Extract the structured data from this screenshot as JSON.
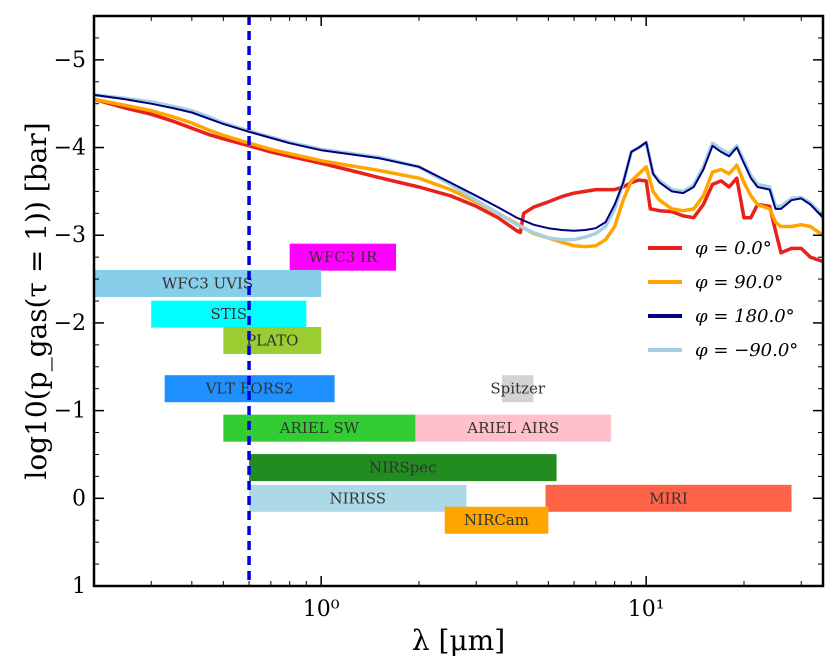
{
  "chart_data": {
    "type": "line",
    "title": "",
    "xlabel": "λ [μm]",
    "ylabel": "log10(p_gas(τ = 1)) [bar]",
    "xscale": "log",
    "xlim": [
      0.2,
      35
    ],
    "ylim": [
      1,
      -5.5
    ],
    "y_inverted": true,
    "x_ticks": [
      {
        "value": 1,
        "label": "10⁰"
      },
      {
        "value": 10,
        "label": "10¹"
      }
    ],
    "y_ticks": [
      {
        "value": -5,
        "label": "−5"
      },
      {
        "value": -4,
        "label": "−4"
      },
      {
        "value": -3,
        "label": "−3"
      },
      {
        "value": -2,
        "label": "−2"
      },
      {
        "value": -1,
        "label": "−1"
      },
      {
        "value": 0,
        "label": "0"
      },
      {
        "value": 1,
        "label": "1"
      }
    ],
    "vline": {
      "x": 0.6,
      "color": "#0000dd",
      "style": "dashed"
    },
    "legend_position": "right",
    "series": [
      {
        "name": "φ = 0.0°",
        "color": "#e8221b",
        "x": [
          0.2,
          0.25,
          0.3,
          0.35,
          0.4,
          0.45,
          0.5,
          0.6,
          0.7,
          0.8,
          1.0,
          1.2,
          1.5,
          2.0,
          2.5,
          3.0,
          3.5,
          4.0,
          4.1,
          4.2,
          4.5,
          5.0,
          5.5,
          6.0,
          7.0,
          8.0,
          8.5,
          9.0,
          9.5,
          10.0,
          10.3,
          11.0,
          12.0,
          13.0,
          14.0,
          15.0,
          16.0,
          17.0,
          18.0,
          19.0,
          20.0,
          21.0,
          22.0,
          24.0,
          25.0,
          26.0,
          28.0,
          30.0,
          32.0,
          35.0
        ],
        "y": [
          -4.55,
          -4.45,
          -4.38,
          -4.3,
          -4.22,
          -4.15,
          -4.1,
          -4.02,
          -3.95,
          -3.9,
          -3.82,
          -3.75,
          -3.66,
          -3.55,
          -3.45,
          -3.33,
          -3.2,
          -3.05,
          -3.03,
          -3.25,
          -3.32,
          -3.38,
          -3.44,
          -3.48,
          -3.52,
          -3.52,
          -3.55,
          -3.6,
          -3.63,
          -3.62,
          -3.3,
          -3.28,
          -3.27,
          -3.22,
          -3.2,
          -3.35,
          -3.58,
          -3.62,
          -3.55,
          -3.65,
          -3.2,
          -3.2,
          -3.35,
          -3.33,
          -3.05,
          -2.8,
          -2.85,
          -2.85,
          -2.75,
          -2.7
        ]
      },
      {
        "name": "φ = 90.0°",
        "color": "#ffa500",
        "x": [
          0.2,
          0.25,
          0.3,
          0.35,
          0.4,
          0.45,
          0.5,
          0.6,
          0.7,
          0.8,
          1.0,
          1.2,
          1.5,
          2.0,
          2.5,
          3.0,
          3.5,
          4.0,
          4.5,
          5.0,
          5.5,
          6.0,
          6.5,
          7.0,
          7.5,
          8.0,
          8.5,
          9.0,
          9.5,
          10.0,
          10.5,
          11.0,
          12.0,
          13.0,
          14.0,
          15.0,
          16.0,
          17.0,
          18.0,
          19.0,
          20.0,
          21.0,
          22.0,
          24.0,
          25.0,
          26.0,
          28.0,
          30.0,
          32.0,
          35.0
        ],
        "y": [
          -4.55,
          -4.48,
          -4.42,
          -4.35,
          -4.28,
          -4.2,
          -4.14,
          -4.05,
          -3.98,
          -3.93,
          -3.85,
          -3.8,
          -3.74,
          -3.65,
          -3.52,
          -3.38,
          -3.25,
          -3.13,
          -3.02,
          -2.97,
          -2.92,
          -2.88,
          -2.87,
          -2.88,
          -2.95,
          -3.1,
          -3.4,
          -3.62,
          -3.7,
          -3.78,
          -3.5,
          -3.4,
          -3.3,
          -3.28,
          -3.3,
          -3.45,
          -3.72,
          -3.75,
          -3.7,
          -3.8,
          -3.6,
          -3.45,
          -3.35,
          -3.3,
          -3.15,
          -3.1,
          -3.1,
          -3.12,
          -3.1,
          -3.0
        ]
      },
      {
        "name": "φ = 180.0°",
        "color": "#000080",
        "x": [
          0.2,
          0.25,
          0.3,
          0.35,
          0.4,
          0.45,
          0.5,
          0.6,
          0.7,
          0.8,
          1.0,
          1.2,
          1.5,
          2.0,
          2.5,
          3.0,
          3.5,
          4.0,
          4.5,
          5.0,
          5.5,
          6.0,
          6.5,
          7.0,
          7.5,
          8.0,
          8.5,
          9.0,
          9.5,
          10.0,
          10.5,
          11.0,
          12.0,
          13.0,
          14.0,
          15.0,
          16.0,
          17.0,
          18.0,
          19.0,
          20.0,
          21.0,
          22.0,
          24.0,
          25.0,
          26.0,
          28.0,
          30.0,
          32.0,
          35.0
        ],
        "y": [
          -4.6,
          -4.55,
          -4.5,
          -4.45,
          -4.4,
          -4.33,
          -4.27,
          -4.18,
          -4.11,
          -4.05,
          -3.97,
          -3.93,
          -3.88,
          -3.78,
          -3.6,
          -3.45,
          -3.32,
          -3.2,
          -3.12,
          -3.08,
          -3.06,
          -3.05,
          -3.06,
          -3.08,
          -3.15,
          -3.35,
          -3.6,
          -3.95,
          -4.0,
          -4.06,
          -3.7,
          -3.6,
          -3.5,
          -3.48,
          -3.55,
          -3.75,
          -4.02,
          -3.95,
          -3.9,
          -4.0,
          -3.82,
          -3.65,
          -3.55,
          -3.52,
          -3.3,
          -3.3,
          -3.4,
          -3.42,
          -3.35,
          -3.2
        ]
      },
      {
        "name": "φ = −90.0°",
        "color": "#a6cfe2",
        "x": [
          0.2,
          0.25,
          0.3,
          0.35,
          0.4,
          0.45,
          0.5,
          0.6,
          0.7,
          0.8,
          1.0,
          1.2,
          1.5,
          2.0,
          2.5,
          3.0,
          3.5,
          4.0,
          4.5,
          5.0,
          5.5,
          6.0,
          6.5,
          7.0,
          7.5,
          8.0,
          8.5,
          9.0,
          9.5,
          10.0,
          10.5,
          11.0,
          12.0,
          13.0,
          14.0,
          15.0,
          16.0,
          17.0,
          18.0,
          19.0,
          20.0,
          21.0,
          22.0,
          24.0,
          25.0,
          26.0,
          28.0,
          30.0,
          32.0,
          35.0
        ],
        "y": [
          -4.6,
          -4.56,
          -4.52,
          -4.47,
          -4.42,
          -4.35,
          -4.28,
          -4.19,
          -4.12,
          -4.06,
          -3.98,
          -3.94,
          -3.89,
          -3.78,
          -3.58,
          -3.4,
          -3.25,
          -3.12,
          -3.03,
          -2.97,
          -2.95,
          -2.95,
          -2.98,
          -3.02,
          -3.1,
          -3.3,
          -3.6,
          -3.95,
          -4.0,
          -4.06,
          -3.7,
          -3.62,
          -3.52,
          -3.5,
          -3.57,
          -3.78,
          -4.05,
          -3.98,
          -3.93,
          -4.02,
          -3.85,
          -3.68,
          -3.58,
          -3.55,
          -3.33,
          -3.33,
          -3.42,
          -3.43,
          -3.37,
          -3.22
        ]
      }
    ],
    "bands": [
      {
        "name": "WFC3 IR",
        "x0": 0.8,
        "x1": 1.7,
        "y": -2.75,
        "color": "#ff00ff"
      },
      {
        "name": "WFC3 UVIS",
        "x0": 0.2,
        "x1": 1.0,
        "y": -2.45,
        "color": "#87ceeb"
      },
      {
        "name": "STIS",
        "x0": 0.3,
        "x1": 0.9,
        "y": -2.1,
        "color": "#00ffff"
      },
      {
        "name": "PLATO",
        "x0": 0.5,
        "x1": 1.0,
        "y": -1.8,
        "color": "#9acd32"
      },
      {
        "name": "VLT FORS2",
        "x0": 0.33,
        "x1": 1.1,
        "y": -1.25,
        "color": "#1e90ff"
      },
      {
        "name": "Spitzer",
        "x0": 3.6,
        "x1": 4.5,
        "y": -1.25,
        "color": "#d3d3d3"
      },
      {
        "name": "ARIEL SW",
        "x0": 0.5,
        "x1": 1.95,
        "y": -0.8,
        "color": "#32cd32"
      },
      {
        "name": "ARIEL AIRS",
        "x0": 1.95,
        "x1": 7.8,
        "y": -0.8,
        "color": "#ffc0cb"
      },
      {
        "name": "NIRSpec",
        "x0": 0.6,
        "x1": 5.3,
        "y": -0.35,
        "color": "#228b22"
      },
      {
        "name": "NIRISS",
        "x0": 0.6,
        "x1": 2.8,
        "y": 0.0,
        "color": "#add8e6"
      },
      {
        "name": "MIRI",
        "x0": 4.9,
        "x1": 28.0,
        "y": 0.0,
        "color": "#ff6347"
      },
      {
        "name": "NIRCam",
        "x0": 2.4,
        "x1": 5.0,
        "y": 0.25,
        "color": "#ffa500"
      }
    ]
  }
}
